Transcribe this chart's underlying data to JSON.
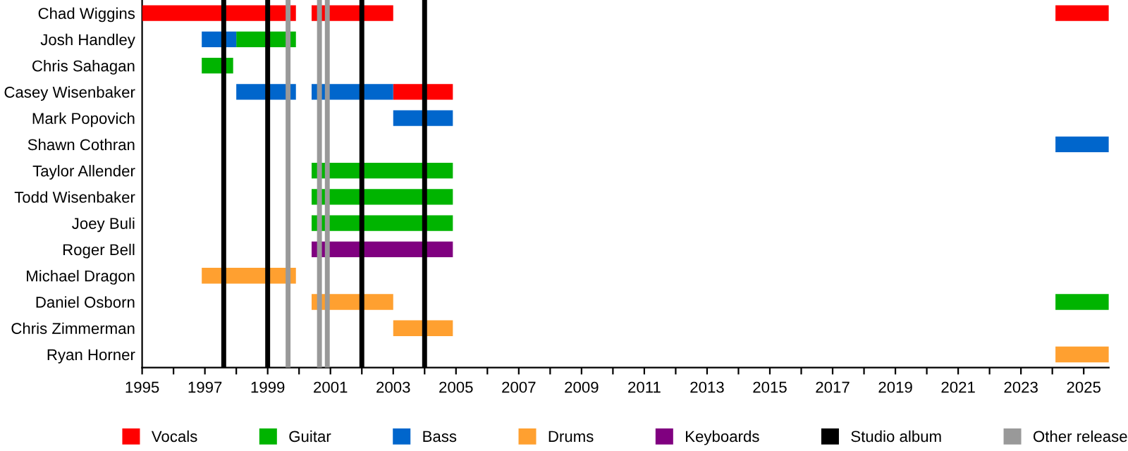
{
  "chart_data": {
    "type": "bar",
    "orientation": "horizontal",
    "categories": [
      "Chad Wiggins",
      "Josh Handley",
      "Chris Sahagan",
      "Casey Wisenbaker",
      "Mark Popovich",
      "Shawn Cothran",
      "Taylor Allender",
      "Todd Wisenbaker",
      "Joey Buli",
      "Roger Bell",
      "Michael Dragon",
      "Daniel Osborn",
      "Chris Zimmerman",
      "Ryan Horner"
    ],
    "series": [
      {
        "name": "Vocals",
        "color": "#ff0000",
        "base": [
          1995,
          null,
          null,
          2003.0,
          null,
          null,
          null,
          null,
          null,
          null,
          null,
          null,
          null,
          null
        ],
        "values": [
          4.9,
          null,
          null,
          1.9,
          null,
          null,
          null,
          null,
          null,
          null,
          null,
          null,
          null,
          null
        ]
      },
      {
        "color": "#ff0000",
        "base": [
          2000.4,
          null,
          null,
          null,
          null,
          null,
          null,
          null,
          null,
          null,
          null,
          null,
          null,
          null
        ],
        "values": [
          2.6,
          null,
          null,
          null,
          null,
          null,
          null,
          null,
          null,
          null,
          null,
          null,
          null,
          null
        ]
      },
      {
        "color": "#ff0000",
        "base": [
          2024.1,
          null,
          null,
          null,
          null,
          null,
          null,
          null,
          null,
          null,
          null,
          null,
          null,
          null
        ],
        "values": [
          1.7,
          null,
          null,
          null,
          null,
          null,
          null,
          null,
          null,
          null,
          null,
          null,
          null,
          null
        ]
      },
      {
        "name": "Guitar",
        "color": "#00b400",
        "base": [
          null,
          1998.0,
          1996.9,
          null,
          null,
          null,
          2000.4,
          2000.4,
          2000.4,
          null,
          null,
          2024.1,
          null,
          null
        ],
        "values": [
          null,
          1.9,
          1.0,
          null,
          null,
          null,
          4.5,
          4.5,
          4.5,
          null,
          null,
          1.7,
          null,
          null
        ]
      },
      {
        "name": "Bass",
        "color": "#0066cc",
        "base": [
          null,
          1996.9,
          null,
          1998.0,
          2003.0,
          2024.1,
          null,
          null,
          null,
          null,
          null,
          null,
          null,
          null
        ],
        "values": [
          null,
          1.1,
          null,
          1.9,
          1.9,
          1.7,
          null,
          null,
          null,
          null,
          null,
          null,
          null,
          null
        ]
      },
      {
        "color": "#0066cc",
        "base": [
          null,
          null,
          null,
          2000.4,
          null,
          null,
          null,
          null,
          null,
          null,
          null,
          null,
          null,
          null
        ],
        "values": [
          null,
          null,
          null,
          2.6,
          null,
          null,
          null,
          null,
          null,
          null,
          null,
          null,
          null,
          null
        ]
      },
      {
        "name": "Drums",
        "color": "#ffa030",
        "base": [
          null,
          null,
          null,
          null,
          null,
          null,
          null,
          null,
          null,
          null,
          1996.9,
          2000.4,
          2003.0,
          2024.1
        ],
        "values": [
          null,
          null,
          null,
          null,
          null,
          null,
          null,
          null,
          null,
          null,
          3.0,
          2.6,
          1.9,
          1.7
        ]
      },
      {
        "name": "Keyboards",
        "color": "#800080",
        "base": [
          null,
          null,
          null,
          null,
          null,
          null,
          null,
          null,
          null,
          2000.4,
          null,
          null,
          null,
          null
        ],
        "values": [
          null,
          null,
          null,
          null,
          null,
          null,
          null,
          null,
          null,
          4.5,
          null,
          null,
          null,
          null
        ]
      }
    ],
    "ref_lines": [
      {
        "axis": "x",
        "value": 1997.6,
        "label": "Studio album",
        "color": "#000000"
      },
      {
        "axis": "x",
        "value": 1999.0,
        "color": "#000000"
      },
      {
        "axis": "x",
        "value": 2002.0,
        "color": "#000000"
      },
      {
        "axis": "x",
        "value": 2004.0,
        "color": "#000000"
      },
      {
        "axis": "x",
        "value": 1999.65,
        "label": "Other release",
        "color": "#999999"
      },
      {
        "axis": "x",
        "value": 2000.65,
        "color": "#999999"
      },
      {
        "axis": "x",
        "value": 2000.9,
        "color": "#999999"
      }
    ],
    "xlim": [
      1995,
      2025.8
    ],
    "xticks": [
      1995,
      {
        "value": 1996,
        "label": null
      },
      1997,
      {
        "value": 1998,
        "label": null
      },
      1999,
      {
        "value": 2000,
        "label": null
      },
      2001,
      {
        "value": 2002,
        "label": null
      },
      2003,
      {
        "value": 2004,
        "label": null
      },
      2005,
      {
        "value": 2006,
        "label": null
      },
      2007,
      {
        "value": 2008,
        "label": null
      },
      2009,
      {
        "value": 2010,
        "label": null
      },
      2011,
      {
        "value": 2012,
        "label": null
      },
      2013,
      {
        "value": 2014,
        "label": null
      },
      2015,
      {
        "value": 2016,
        "label": null
      },
      2017,
      {
        "value": 2018,
        "label": null
      },
      2019,
      {
        "value": 2020,
        "label": null
      },
      2021,
      {
        "value": 2022,
        "label": null
      },
      2023,
      {
        "value": 2024,
        "label": null
      },
      2025
    ],
    "grid": false,
    "legend": "bottom"
  }
}
